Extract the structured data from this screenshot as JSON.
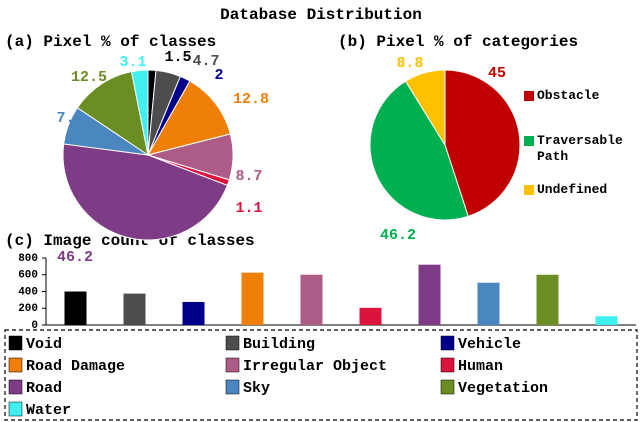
{
  "title": "Database Distribution",
  "chart_data": [
    {
      "type": "pie",
      "title": "(a) Pixel % of classes",
      "values": [
        1.5,
        4.7,
        2,
        12.8,
        8.7,
        1.1,
        46.2,
        7.3,
        12.5,
        3.1
      ],
      "colors": [
        "#000000",
        "#4d4d4d",
        "#00008b",
        "#f07f09",
        "#ad5b87",
        "#dc143c",
        "#7e3c87",
        "#4a86c0",
        "#6b8e23",
        "#40f0f0"
      ]
    },
    {
      "type": "pie",
      "title": "(b) Pixel % of categories",
      "categories": [
        "Obstacle",
        "Traversable Path",
        "Undefined"
      ],
      "values": [
        45,
        46.2,
        8.8
      ],
      "colors": [
        "#c00000",
        "#00b050",
        "#ffc000"
      ]
    },
    {
      "type": "bar",
      "title": "(c) Image count of classes",
      "categories": [
        "Void",
        "Building",
        "Vehicle",
        "Road Damage",
        "Irregular Object",
        "Human",
        "Road",
        "Sky",
        "Vegetation",
        "Water"
      ],
      "values": [
        400,
        375,
        275,
        625,
        600,
        205,
        720,
        505,
        600,
        105
      ],
      "colors": [
        "#000000",
        "#4d4d4d",
        "#00008b",
        "#f07f09",
        "#ad5b87",
        "#dc143c",
        "#7e3c87",
        "#4a86c0",
        "#6b8e23",
        "#40f0f0"
      ],
      "ylim": [
        0,
        800
      ],
      "yticks": [
        0,
        200,
        400,
        600,
        800
      ]
    }
  ]
}
